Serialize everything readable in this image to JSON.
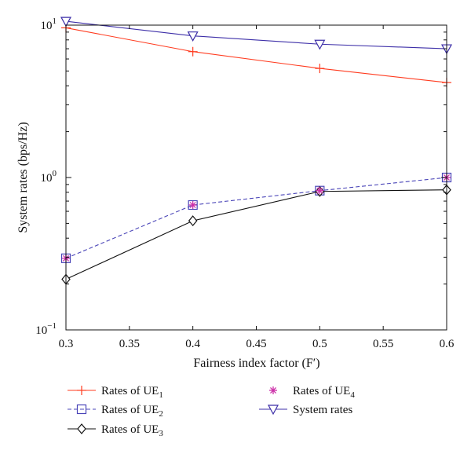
{
  "chart_data": {
    "type": "line",
    "title": "",
    "xlabel": "Fairness index factor (F′)",
    "ylabel": "System rates (bps/Hz)",
    "x": [
      0.3,
      0.4,
      0.5,
      0.6
    ],
    "xlim": [
      0.3,
      0.6
    ],
    "ylim": [
      0.1,
      10
    ],
    "yscale": "log",
    "xticks": [
      0.3,
      0.35,
      0.4,
      0.45,
      0.5,
      0.55,
      0.6
    ],
    "xtick_labels": [
      "0.3",
      "0.35",
      "0.4",
      "0.45",
      "0.5",
      "0.55",
      "0.6"
    ],
    "yticks": [
      0.1,
      1,
      10
    ],
    "ytick_labels": [
      {
        "base": "10",
        "exp": "−1"
      },
      {
        "base": "10",
        "exp": "0"
      },
      {
        "base": "10",
        "exp": "1"
      }
    ],
    "grid": false,
    "legend_position": "below",
    "series": [
      {
        "name": "Rates of UE",
        "sub": "1",
        "values": [
          9.6,
          6.7,
          5.2,
          4.2
        ],
        "color": "#ff3b1f",
        "marker": "plus",
        "dash": "solid"
      },
      {
        "name": "Rates of UE",
        "sub": "2",
        "values": [
          0.295,
          0.66,
          0.82,
          1.0
        ],
        "color": "#4a45b8",
        "marker": "square",
        "dash": "dashed"
      },
      {
        "name": "Rates of UE",
        "sub": "3",
        "values": [
          0.215,
          0.52,
          0.81,
          0.83
        ],
        "color": "#111111",
        "marker": "diamond",
        "dash": "solid"
      },
      {
        "name": "Rates of UE",
        "sub": "4",
        "values": [
          0.295,
          0.66,
          0.82,
          1.0
        ],
        "color": "#cc2fa8",
        "marker": "star",
        "dash": "none"
      },
      {
        "name": "System rates",
        "sub": "",
        "values": [
          10.6,
          8.5,
          7.5,
          7.0
        ],
        "color": "#3d2fa8",
        "marker": "triangle-down",
        "dash": "solid"
      }
    ]
  }
}
